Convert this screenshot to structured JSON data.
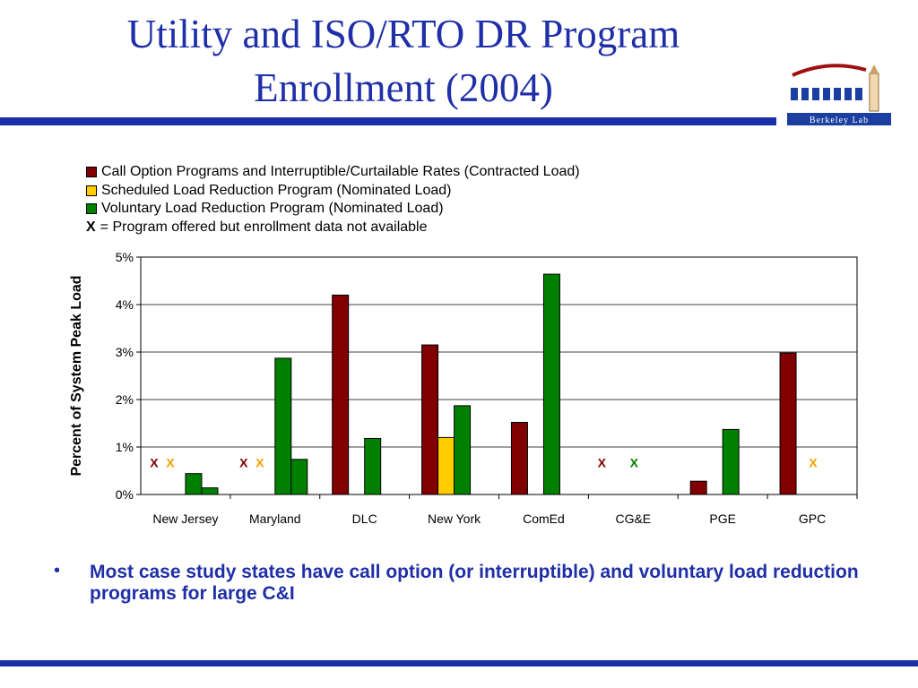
{
  "slide": {
    "title_line1": "Utility and ISO/RTO DR Program",
    "title_line2": "Enrollment (2004)",
    "bullet_symbol": "•",
    "bullet_text": "Most case study states have call option (or interruptible) and voluntary load reduction programs for large C&I",
    "logo_text": "Berkeley Lab"
  },
  "colors": {
    "accent": "#1a2fa8",
    "call_option": "#800000",
    "scheduled": "#ffcc00",
    "voluntary": "#008000",
    "x_orange": "#f0a000"
  },
  "legend": {
    "items": [
      {
        "label": "Call Option Programs and Interruptible/Curtailable Rates (Contracted Load)",
        "color": "#800000"
      },
      {
        "label": "Scheduled Load Reduction Program (Nominated Load)",
        "color": "#ffcc00"
      },
      {
        "label": "Voluntary Load Reduction Program (Nominated Load)",
        "color": "#008000"
      }
    ],
    "x_note_symbol": "X",
    "x_note_text": "= Program offered but enrollment data not available"
  },
  "chart_data": {
    "type": "bar",
    "ylabel": "Percent of System Peak Load",
    "xlabel": "",
    "ylim": [
      0,
      5
    ],
    "yticks": [
      "0%",
      "1%",
      "2%",
      "3%",
      "4%",
      "5%"
    ],
    "grid": true,
    "legend_position": "top",
    "categories": [
      "New Jersey",
      "Maryland",
      "DLC",
      "New York",
      "ComEd",
      "CG&E",
      "PGE",
      "GPC"
    ],
    "series": [
      {
        "name": "Call Option Programs and Interruptible/Curtailable Rates (Contracted Load)",
        "color": "#800000",
        "values": [
          null,
          null,
          4.2,
          3.15,
          1.52,
          null,
          0.28,
          2.98
        ]
      },
      {
        "name": "Scheduled Load Reduction Program (Nominated Load)",
        "color": "#ffcc00",
        "values": [
          null,
          null,
          null,
          1.2,
          null,
          null,
          null,
          null
        ]
      },
      {
        "name": "Voluntary Load Reduction Program (Nominated Load)",
        "color": "#008000",
        "values": [
          0.44,
          2.87,
          1.18,
          1.87,
          4.64,
          null,
          1.37,
          null
        ]
      },
      {
        "name": "Voluntary Load Reduction Program (Nominated Load)",
        "color": "#008000",
        "values": [
          0.14,
          0.74,
          null,
          null,
          null,
          null,
          null,
          null
        ]
      }
    ],
    "x_markers": [
      {
        "category": "New Jersey",
        "series": 0,
        "label": "X",
        "color": "#800000"
      },
      {
        "category": "New Jersey",
        "series": 1,
        "label": "X",
        "color": "#f0a000"
      },
      {
        "category": "Maryland",
        "series": 0,
        "label": "X",
        "color": "#800000"
      },
      {
        "category": "Maryland",
        "series": 1,
        "label": "X",
        "color": "#f0a000"
      },
      {
        "category": "CG&E",
        "series": 0,
        "label": "X",
        "color": "#800000"
      },
      {
        "category": "CG&E",
        "series": 2,
        "label": "X",
        "color": "#008000"
      },
      {
        "category": "GPC",
        "series": 2,
        "label": "X",
        "color": "#f0a000"
      }
    ]
  }
}
